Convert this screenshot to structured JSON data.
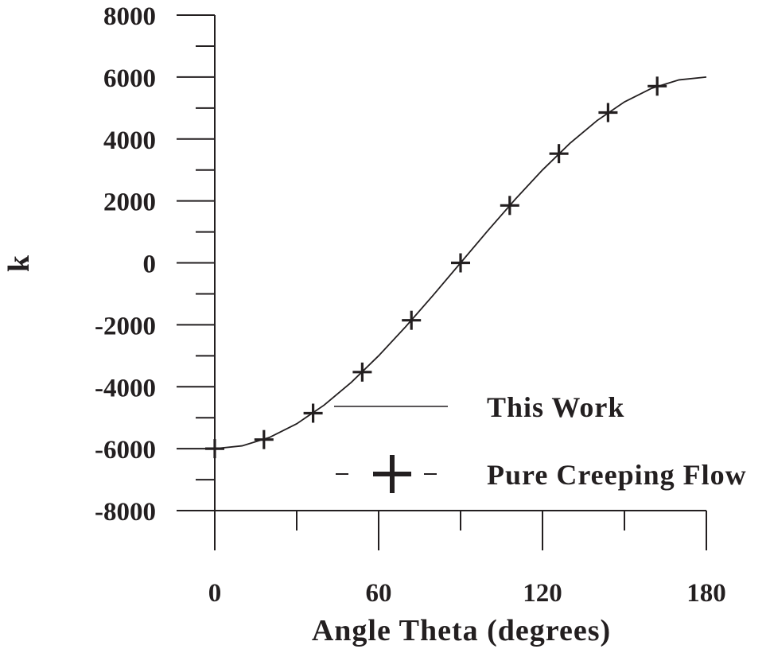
{
  "chart_data": {
    "type": "line",
    "title": "",
    "xlabel": "Angle Theta (degrees)",
    "ylabel": "k",
    "xlim": [
      0,
      180
    ],
    "ylim": [
      -8000,
      8000
    ],
    "x_ticks": [
      0,
      60,
      120,
      180
    ],
    "x_tick_labels": [
      "0",
      "60",
      "120",
      "180"
    ],
    "y_ticks": [
      -8000,
      -6000,
      -4000,
      -2000,
      0,
      2000,
      4000,
      6000,
      8000
    ],
    "y_tick_labels": [
      "-8000",
      "-6000",
      "-4000",
      "-2000",
      "0",
      "2000",
      "4000",
      "6000",
      "8000"
    ],
    "grid": false,
    "legend_position": "bottom-right",
    "series": [
      {
        "name": "This Work",
        "style": "line",
        "x": [
          0,
          10,
          20,
          30,
          40,
          50,
          60,
          70,
          80,
          90,
          100,
          110,
          120,
          130,
          140,
          150,
          160,
          170,
          180
        ],
        "y": [
          -6000,
          -5909,
          -5638,
          -5196,
          -4596,
          -3857,
          -3000,
          -2052,
          -1042,
          0,
          1042,
          2052,
          3000,
          3857,
          4596,
          5196,
          5638,
          5909,
          6000
        ]
      },
      {
        "name": "Pure Creeping Flow",
        "style": "plus-markers",
        "x": [
          0,
          18,
          36,
          54,
          72,
          90,
          108,
          126,
          144,
          162
        ],
        "y": [
          -6000,
          -5706,
          -4854,
          -3527,
          -1854,
          0,
          1854,
          3527,
          4854,
          5706
        ]
      }
    ],
    "line_color": "#231f20"
  }
}
